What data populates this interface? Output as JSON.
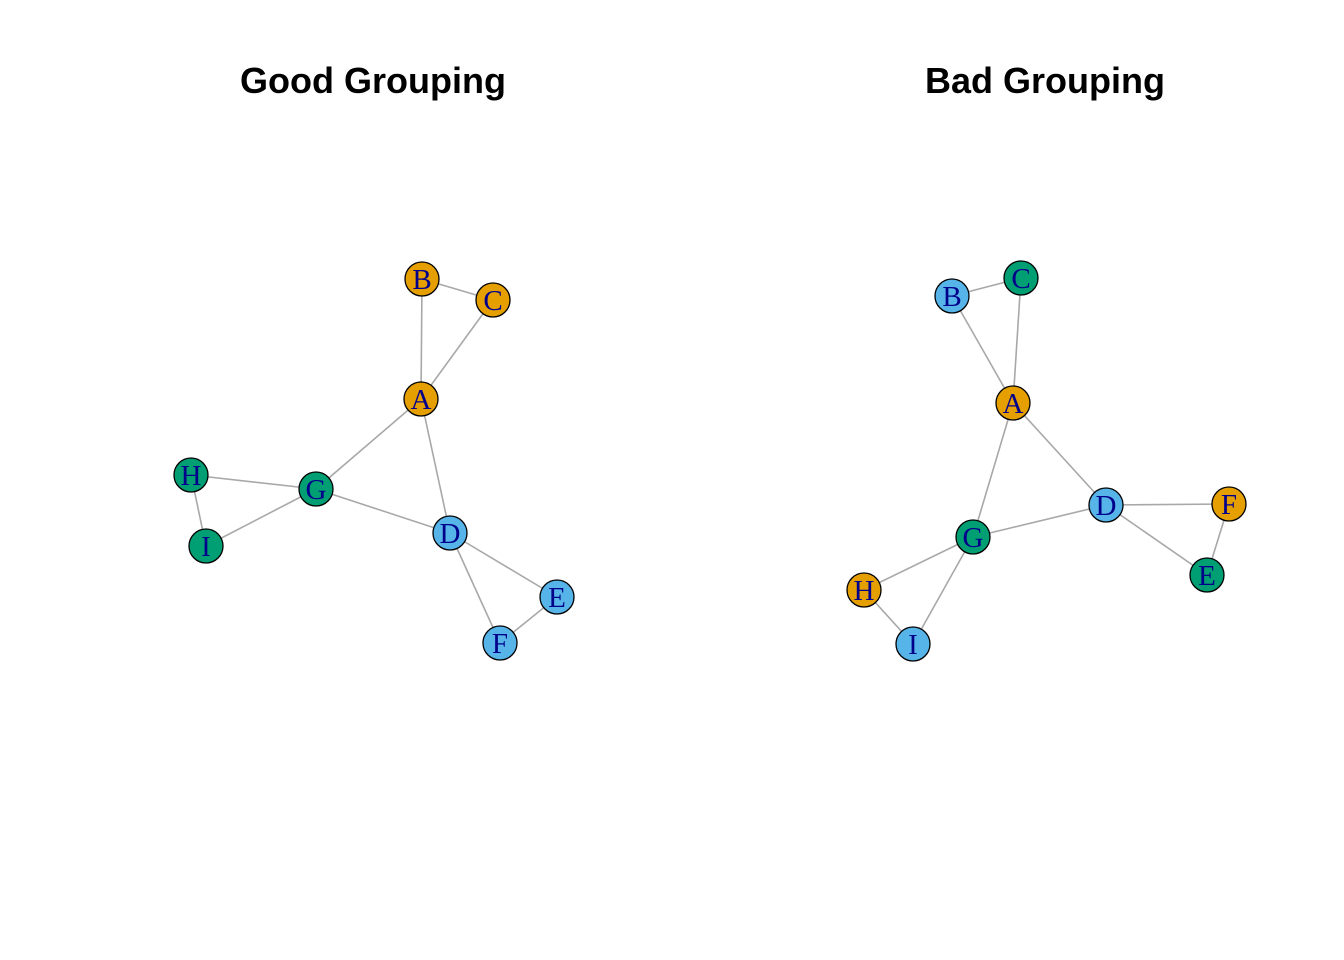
{
  "colors": {
    "orange": "#E69F00",
    "green": "#009E73",
    "blue": "#56B4E9",
    "edge": "#A8A8A8",
    "label": "#00008B"
  },
  "panels": [
    {
      "id": "good",
      "title": "Good Grouping",
      "nodes": [
        {
          "id": "A",
          "color": "orange"
        },
        {
          "id": "B",
          "color": "orange"
        },
        {
          "id": "C",
          "color": "orange"
        },
        {
          "id": "D",
          "color": "blue"
        },
        {
          "id": "E",
          "color": "blue"
        },
        {
          "id": "F",
          "color": "blue"
        },
        {
          "id": "G",
          "color": "green"
        },
        {
          "id": "H",
          "color": "green"
        },
        {
          "id": "I",
          "color": "green"
        }
      ],
      "edges": [
        [
          "A",
          "B"
        ],
        [
          "A",
          "C"
        ],
        [
          "B",
          "C"
        ],
        [
          "A",
          "D"
        ],
        [
          "A",
          "G"
        ],
        [
          "D",
          "G"
        ],
        [
          "D",
          "E"
        ],
        [
          "D",
          "F"
        ],
        [
          "E",
          "F"
        ],
        [
          "G",
          "H"
        ],
        [
          "G",
          "I"
        ],
        [
          "H",
          "I"
        ]
      ]
    },
    {
      "id": "bad",
      "title": "Bad Grouping",
      "nodes": [
        {
          "id": "A",
          "color": "orange"
        },
        {
          "id": "B",
          "color": "blue"
        },
        {
          "id": "C",
          "color": "green"
        },
        {
          "id": "D",
          "color": "blue"
        },
        {
          "id": "E",
          "color": "green"
        },
        {
          "id": "F",
          "color": "orange"
        },
        {
          "id": "G",
          "color": "green"
        },
        {
          "id": "H",
          "color": "orange"
        },
        {
          "id": "I",
          "color": "blue"
        }
      ],
      "edges": [
        [
          "A",
          "B"
        ],
        [
          "A",
          "C"
        ],
        [
          "B",
          "C"
        ],
        [
          "A",
          "D"
        ],
        [
          "A",
          "G"
        ],
        [
          "D",
          "G"
        ],
        [
          "D",
          "E"
        ],
        [
          "D",
          "F"
        ],
        [
          "E",
          "F"
        ],
        [
          "G",
          "H"
        ],
        [
          "G",
          "I"
        ],
        [
          "H",
          "I"
        ]
      ]
    }
  ]
}
